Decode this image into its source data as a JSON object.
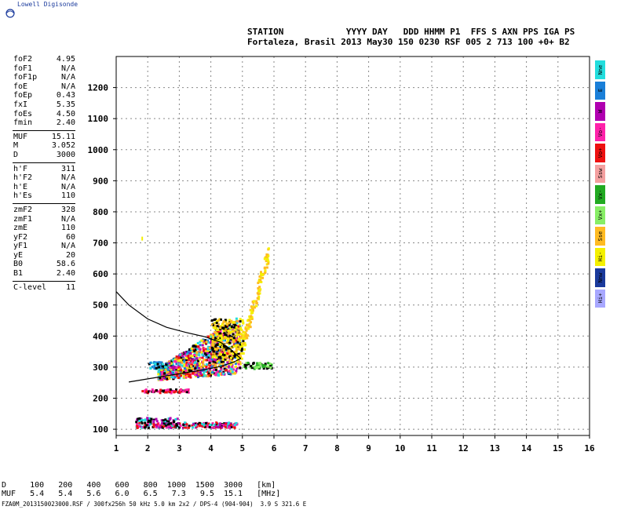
{
  "logo": {
    "text": "Lowell Digisonde"
  },
  "header": {
    "line1": "STATION            YYYY DAY   DDD HHMM P1  FFS S AXN PPS IGA PS",
    "line2": "Fortaleza, Brasil 2013 May30 150 0230 RSF 005 2 713 100 +0+ B2"
  },
  "params": [
    {
      "label": "foF2",
      "value": "4.95"
    },
    {
      "label": "foF1",
      "value": "N/A"
    },
    {
      "label": "foF1p",
      "value": "N/A"
    },
    {
      "label": "foE",
      "value": "N/A"
    },
    {
      "label": "foEp",
      "value": "0.43"
    },
    {
      "label": "fxI",
      "value": "5.35"
    },
    {
      "label": "foEs",
      "value": "4.50"
    },
    {
      "label": "fmin",
      "value": "2.40"
    },
    {
      "sep": true
    },
    {
      "label": "MUF",
      "value": "15.11"
    },
    {
      "label": "M",
      "value": "3.052"
    },
    {
      "label": "D",
      "value": "3000"
    },
    {
      "sep": true
    },
    {
      "label": "h'F",
      "value": "311"
    },
    {
      "label": "h'F2",
      "value": "N/A"
    },
    {
      "label": "h'E",
      "value": "N/A"
    },
    {
      "label": "h'Es",
      "value": "110"
    },
    {
      "sep": true
    },
    {
      "label": "zmF2",
      "value": "328"
    },
    {
      "label": "zmF1",
      "value": "N/A"
    },
    {
      "label": "zmE",
      "value": "110"
    },
    {
      "label": "yF2",
      "value": "60"
    },
    {
      "label": "yF1",
      "value": "N/A"
    },
    {
      "label": "yE",
      "value": "20"
    },
    {
      "label": "B0",
      "value": "58.6"
    },
    {
      "label": "B1",
      "value": "2.40"
    },
    {
      "sep": true
    },
    {
      "label": "C-level",
      "value": "11"
    }
  ],
  "legend": [
    {
      "label": "Nne",
      "color": "#22dddd"
    },
    {
      "label": "E",
      "color": "#1a7fd8"
    },
    {
      "label": "W",
      "color": "#b000b0"
    },
    {
      "label": "Vo-",
      "color": "#ff22aa"
    },
    {
      "label": "Vo+",
      "color": "#ee1111"
    },
    {
      "label": "Ssw",
      "color": "#f4a0a0"
    },
    {
      "label": "Vx-",
      "color": "#22aa22"
    },
    {
      "label": "Vx+",
      "color": "#88ee66"
    },
    {
      "label": "Sse",
      "color": "#ffbb22"
    },
    {
      "label": "Hi-",
      "color": "#f4f000"
    },
    {
      "label": "Nnw",
      "color": "#1a3a9c"
    },
    {
      "label": "Hi+",
      "color": "#a8a8ff"
    }
  ],
  "footer": {
    "d_row": "D     100   200   400   600   800  1000  1500  3000   [km]",
    "muf_row": "MUF   5.4   5.4   5.6   6.0   6.5   7.3   9.5  15.1   [MHz]",
    "file_line": "FZA0M_2013150023000.RSF / 300fx256h 50 kHz 5.0 km 2x2 / DPS-4 (904-904)  3.9 S 321.6 E"
  },
  "chart_data": {
    "type": "scatter",
    "title": "",
    "xlabel": "",
    "ylabel": "",
    "xlim": [
      1,
      16
    ],
    "ylim": [
      80,
      1300
    ],
    "x_ticks": [
      1,
      2,
      3,
      4,
      5,
      6,
      7,
      8,
      9,
      10,
      11,
      12,
      13,
      14,
      15,
      16
    ],
    "y_ticks": [
      100,
      200,
      300,
      400,
      500,
      600,
      700,
      800,
      900,
      1000,
      1100,
      1200
    ],
    "grid": true,
    "clusters": [
      {
        "name": "Es trace",
        "x": [
          1.6,
          4.8
        ],
        "y": [
          108,
          125
        ],
        "density": 260,
        "colors": [
          "#000000",
          "#ff22aa",
          "#ee1111",
          "#b000b0",
          "#22dddd"
        ]
      },
      {
        "name": "Es echo",
        "x": [
          1.6,
          3.0
        ],
        "y": [
          127,
          140
        ],
        "density": 40,
        "colors": [
          "#000000",
          "#22dddd",
          "#b000b0"
        ]
      },
      {
        "name": "F low trace",
        "x": [
          1.8,
          3.3
        ],
        "y": [
          220,
          232
        ],
        "density": 70,
        "colors": [
          "#ee1111",
          "#ff22aa",
          "#000000"
        ]
      },
      {
        "name": "F main",
        "x": [
          2.3,
          4.9
        ],
        "y": [
          260,
          480
        ],
        "density": 1100,
        "colors": [
          "#000000",
          "#ffbb22",
          "#22dddd",
          "#ff22aa",
          "#b000b0",
          "#1a7fd8",
          "#f4f000",
          "#ee1111"
        ]
      },
      {
        "name": "F cusp",
        "x": [
          4.0,
          5.0
        ],
        "y": [
          330,
          460
        ],
        "density": 260,
        "colors": [
          "#ffbb22",
          "#000000",
          "#f4f000"
        ]
      },
      {
        "name": "F tail",
        "x": [
          5.0,
          5.8
        ],
        "y": [
          380,
          670
        ],
        "density": 120,
        "colors": [
          "#ffbb22",
          "#f4f000"
        ]
      },
      {
        "name": "F side band",
        "x": [
          5.0,
          5.9
        ],
        "y": [
          298,
          318
        ],
        "density": 60,
        "colors": [
          "#000000",
          "#88ee66",
          "#22aa22"
        ]
      },
      {
        "name": "F left spread",
        "x": [
          2.0,
          2.6
        ],
        "y": [
          295,
          320
        ],
        "density": 50,
        "colors": [
          "#22dddd",
          "#000000",
          "#1a7fd8"
        ]
      }
    ],
    "profile_upper": [
      [
        1.0,
        543
      ],
      [
        1.4,
        500
      ],
      [
        2.0,
        455
      ],
      [
        2.6,
        428
      ],
      [
        3.2,
        412
      ],
      [
        3.8,
        398
      ],
      [
        4.3,
        380
      ],
      [
        4.6,
        360
      ],
      [
        4.8,
        340
      ],
      [
        4.95,
        328
      ]
    ],
    "profile_lower": [
      [
        1.4,
        252
      ],
      [
        2.0,
        262
      ],
      [
        2.6,
        272
      ],
      [
        3.2,
        282
      ],
      [
        3.8,
        292
      ],
      [
        4.3,
        302
      ],
      [
        4.7,
        315
      ],
      [
        4.95,
        328
      ]
    ]
  }
}
